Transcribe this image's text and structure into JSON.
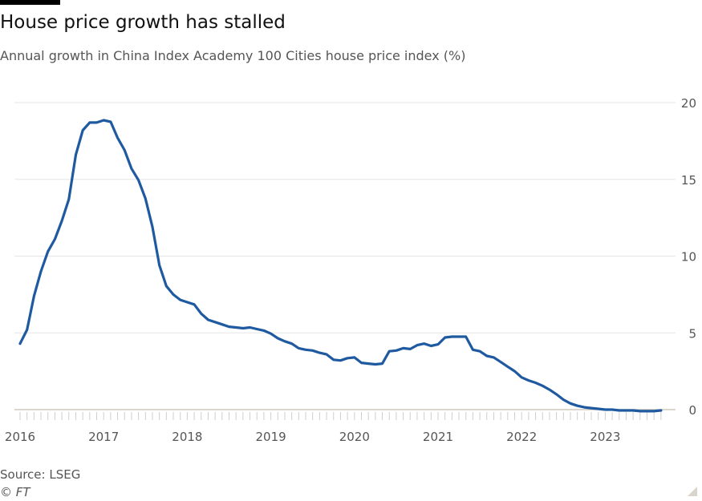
{
  "header": {
    "title": "House price growth has stalled",
    "subtitle": "Annual growth in China Index Academy 100 Cities house price index (%)"
  },
  "footer": {
    "source": "Source: LSEG",
    "copyright": "© FT"
  },
  "colors": {
    "line": "#1f5aa0",
    "grid": "#e6e6e6",
    "zero_line": "#cfc8be",
    "tick": "#cfcfcf",
    "text": "#555555"
  },
  "chart_data": {
    "type": "line",
    "title": "House price growth has stalled",
    "subtitle": "Annual growth in China Index Academy 100 Cities house price index (%)",
    "xlabel": "",
    "ylabel": "",
    "x_tick_labels": [
      "2016",
      "2017",
      "2018",
      "2019",
      "2020",
      "2021",
      "2022",
      "2023"
    ],
    "y_tick_labels": [
      "0",
      "5",
      "10",
      "15",
      "20"
    ],
    "ylim": [
      0,
      20
    ],
    "xlim": [
      "2016-01",
      "2023-09"
    ],
    "y_axis_side": "right",
    "grid": true,
    "legend": "none",
    "series": [
      {
        "x": [
          "2016-01",
          "2016-02",
          "2016-03",
          "2016-04",
          "2016-05",
          "2016-06",
          "2016-07",
          "2016-08",
          "2016-09",
          "2016-10",
          "2016-11",
          "2016-12",
          "2017-01",
          "2017-02",
          "2017-03",
          "2017-04",
          "2017-05",
          "2017-06",
          "2017-07",
          "2017-08",
          "2017-09",
          "2017-10",
          "2017-11",
          "2017-12",
          "2018-01",
          "2018-02",
          "2018-03",
          "2018-04",
          "2018-05",
          "2018-06",
          "2018-07",
          "2018-08",
          "2018-09",
          "2018-10",
          "2018-11",
          "2018-12",
          "2019-01",
          "2019-02",
          "2019-03",
          "2019-04",
          "2019-05",
          "2019-06",
          "2019-07",
          "2019-08",
          "2019-09",
          "2019-10",
          "2019-11",
          "2019-12",
          "2020-01",
          "2020-02",
          "2020-03",
          "2020-04",
          "2020-05",
          "2020-06",
          "2020-07",
          "2020-08",
          "2020-09",
          "2020-10",
          "2020-11",
          "2020-12",
          "2021-01",
          "2021-02",
          "2021-03",
          "2021-04",
          "2021-05",
          "2021-06",
          "2021-07",
          "2021-08",
          "2021-09",
          "2021-10",
          "2021-11",
          "2021-12",
          "2022-01",
          "2022-02",
          "2022-03",
          "2022-04",
          "2022-05",
          "2022-06",
          "2022-07",
          "2022-08",
          "2022-09",
          "2022-10",
          "2022-11",
          "2022-12",
          "2023-01",
          "2023-02",
          "2023-03",
          "2023-04",
          "2023-05",
          "2023-06",
          "2023-07",
          "2023-08",
          "2023-09"
        ],
        "values": [
          4.3,
          5.2,
          7.4,
          9.0,
          10.3,
          11.1,
          12.3,
          13.7,
          16.6,
          18.2,
          18.7,
          18.7,
          18.85,
          18.75,
          17.7,
          16.9,
          15.7,
          14.95,
          13.75,
          11.9,
          9.4,
          8.05,
          7.5,
          7.15,
          7.0,
          6.85,
          6.25,
          5.85,
          5.7,
          5.55,
          5.4,
          5.35,
          5.3,
          5.35,
          5.25,
          5.15,
          4.95,
          4.65,
          4.45,
          4.3,
          4.0,
          3.9,
          3.85,
          3.7,
          3.6,
          3.25,
          3.2,
          3.35,
          3.4,
          3.05,
          3.0,
          2.95,
          3.0,
          3.8,
          3.85,
          4.0,
          3.95,
          4.2,
          4.3,
          4.15,
          4.25,
          4.7,
          4.75,
          4.75,
          4.75,
          3.9,
          3.8,
          3.5,
          3.4,
          3.1,
          2.8,
          2.5,
          2.1,
          1.9,
          1.75,
          1.55,
          1.3,
          1.0,
          0.65,
          0.4,
          0.25,
          0.15,
          0.1,
          0.05,
          0.0,
          0.0,
          -0.05,
          -0.05,
          -0.05,
          -0.1,
          -0.1,
          -0.1,
          -0.05
        ]
      }
    ]
  }
}
